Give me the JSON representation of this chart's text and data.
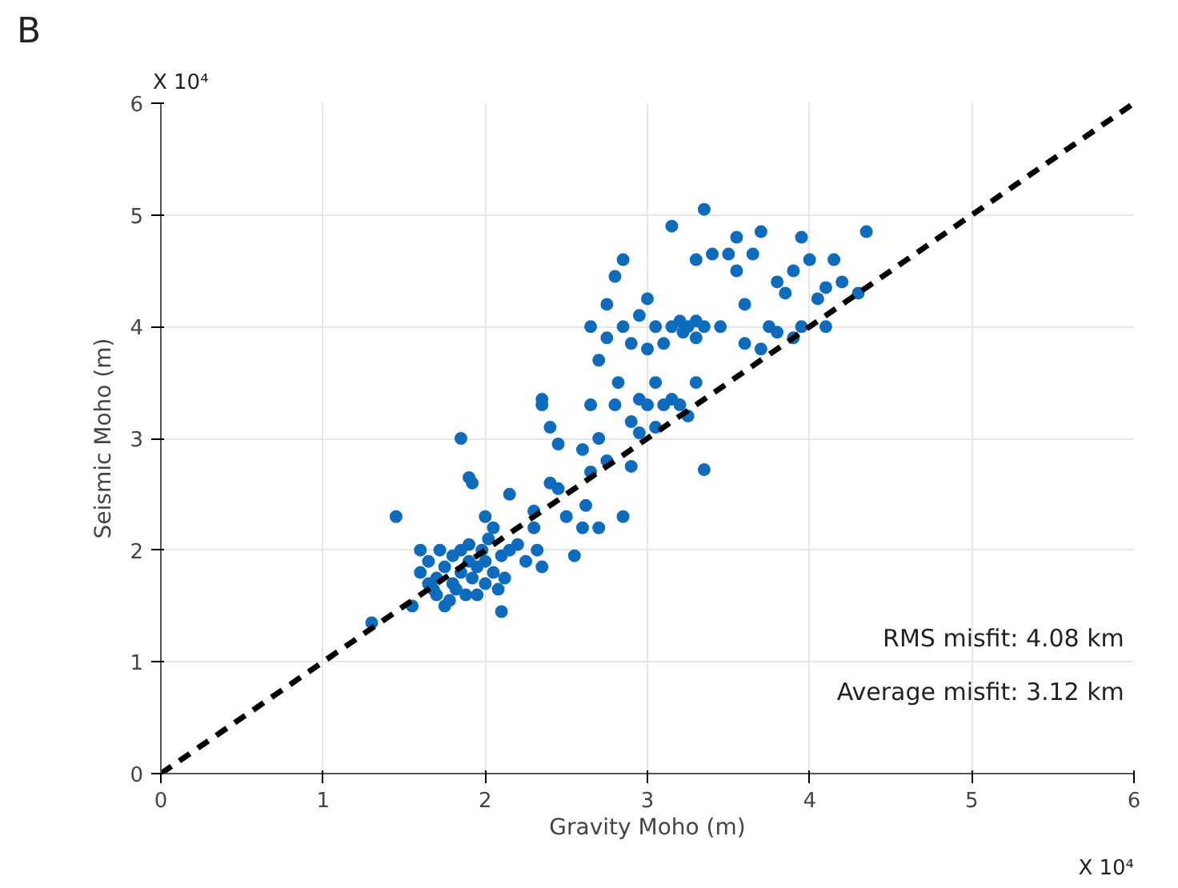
{
  "chart_data": {
    "type": "scatter",
    "xlabel": "Gravity Moho (m)",
    "ylabel": "Seismic Moho (m)",
    "xlim": [
      0,
      6
    ],
    "ylim": [
      0,
      6
    ],
    "xticks": [
      0,
      1,
      2,
      3,
      4,
      5,
      6
    ],
    "yticks": [
      0,
      1,
      2,
      3,
      4,
      5,
      6
    ],
    "grid": true,
    "marker": "circle",
    "annotations": [
      "B",
      "X 10⁴",
      "X 10⁴",
      "RMS misfit: 4.08 km",
      "Average misfit: 3.12 km"
    ],
    "series": [
      {
        "color": "#0f6cbd",
        "x": [
          1.3,
          1.45,
          1.55,
          1.6,
          1.6,
          1.65,
          1.65,
          1.7,
          1.7,
          1.72,
          1.75,
          1.78,
          1.8,
          1.8,
          1.82,
          1.85,
          1.85,
          1.88,
          1.9,
          1.9,
          1.92,
          1.95,
          1.95,
          1.98,
          2.0,
          2.0,
          2.02,
          2.05,
          2.05,
          2.08,
          2.1,
          2.1,
          2.12,
          2.15,
          2.2,
          1.85,
          1.9,
          1.92,
          2.0,
          1.75,
          1.68,
          2.15,
          2.25,
          2.3,
          2.32,
          2.35,
          2.3,
          2.35,
          2.35,
          2.4,
          2.4,
          2.45,
          2.5,
          2.45,
          2.55,
          2.6,
          2.62,
          2.65,
          2.6,
          2.65,
          2.7,
          2.7,
          2.75,
          2.8,
          2.82,
          2.85,
          2.9,
          2.95,
          2.9,
          2.95,
          3.0,
          3.05,
          3.05,
          3.1,
          3.15,
          3.2,
          3.25,
          3.3,
          3.35,
          2.65,
          2.7,
          2.75,
          2.75,
          2.8,
          2.85,
          2.85,
          2.9,
          2.95,
          3.0,
          3.0,
          3.05,
          3.1,
          3.15,
          3.2,
          3.22,
          3.25,
          3.3,
          3.3,
          3.35,
          3.15,
          3.3,
          3.35,
          3.4,
          3.45,
          3.5,
          3.55,
          3.55,
          3.6,
          3.65,
          3.7,
          3.6,
          3.7,
          3.75,
          3.8,
          3.85,
          3.9,
          3.9,
          3.95,
          3.95,
          4.0,
          4.05,
          4.1,
          4.15,
          4.2,
          4.3,
          4.35,
          4.1,
          3.8
        ],
        "values": [
          1.35,
          2.3,
          1.5,
          2.0,
          1.8,
          1.7,
          1.9,
          1.6,
          1.75,
          2.0,
          1.85,
          1.55,
          1.7,
          1.95,
          1.65,
          1.8,
          2.0,
          1.6,
          1.9,
          2.05,
          1.75,
          1.85,
          1.6,
          2.0,
          1.7,
          1.9,
          2.1,
          1.8,
          2.2,
          1.65,
          1.95,
          1.45,
          1.75,
          2.5,
          2.05,
          3.0,
          2.65,
          2.6,
          2.3,
          1.5,
          1.65,
          2.0,
          1.9,
          2.2,
          2.0,
          1.85,
          2.35,
          3.35,
          3.3,
          3.1,
          2.6,
          2.55,
          2.3,
          2.95,
          1.95,
          2.2,
          2.4,
          2.7,
          2.9,
          3.3,
          3.0,
          2.2,
          2.8,
          3.3,
          3.5,
          2.3,
          2.75,
          3.05,
          3.15,
          3.35,
          3.3,
          3.1,
          3.5,
          3.3,
          3.35,
          3.3,
          3.2,
          3.5,
          2.72,
          4.0,
          3.7,
          4.2,
          3.9,
          4.45,
          4.6,
          4.0,
          3.85,
          4.1,
          4.25,
          3.8,
          4.0,
          3.85,
          4.0,
          4.05,
          3.95,
          4.0,
          4.05,
          3.9,
          4.0,
          4.9,
          4.6,
          5.05,
          4.65,
          4.0,
          4.65,
          4.8,
          4.5,
          4.2,
          4.65,
          4.85,
          3.85,
          3.8,
          4.0,
          4.4,
          4.3,
          3.9,
          4.5,
          4.8,
          4.0,
          4.6,
          4.25,
          4.35,
          4.6,
          4.4,
          4.3,
          4.85,
          4.0,
          3.95
        ]
      },
      {
        "type": "line",
        "color": "#000000",
        "line_style": "dashed",
        "marker": "none",
        "x": [
          0,
          6
        ],
        "values": [
          0,
          6
        ]
      }
    ]
  }
}
